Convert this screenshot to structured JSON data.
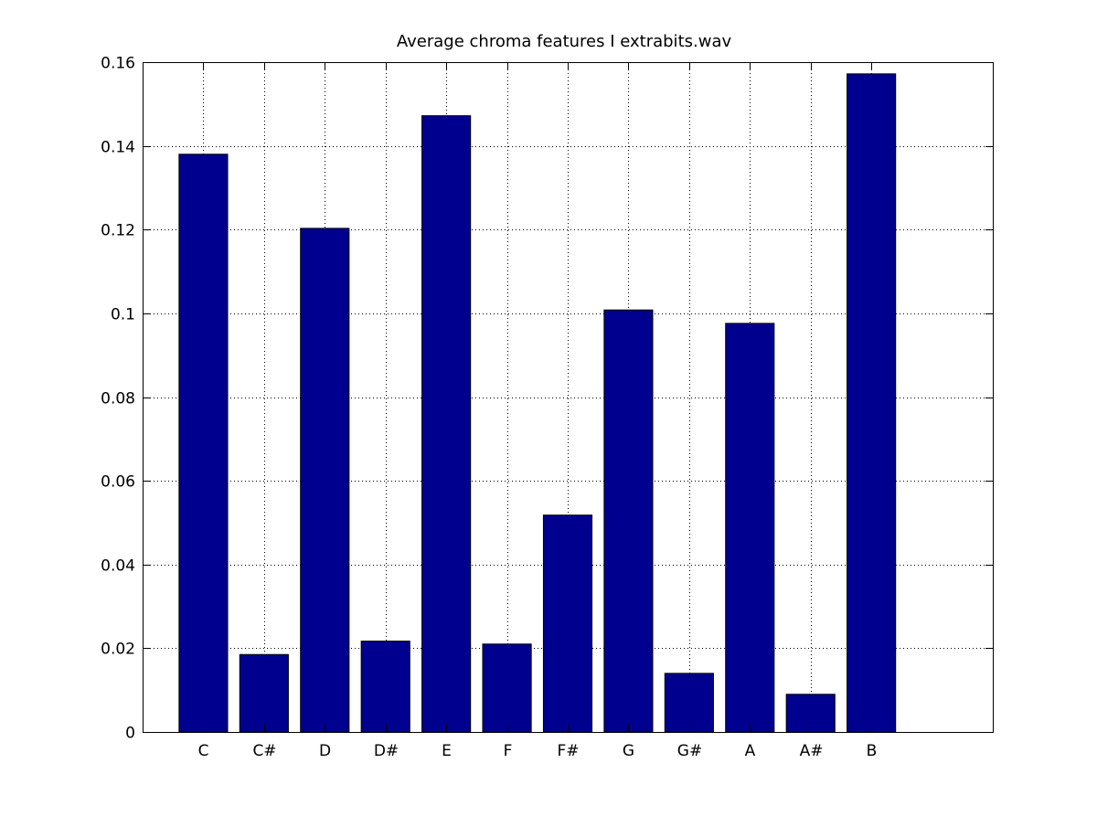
{
  "chart_data": {
    "type": "bar",
    "title": "Average chroma features I extrabits.wav",
    "xlabel": "",
    "ylabel": "",
    "categories": [
      "C",
      "C#",
      "D",
      "D#",
      "E",
      "F",
      "F#",
      "G",
      "G#",
      "A",
      "A#",
      "B"
    ],
    "values": [
      0.138,
      0.0185,
      0.1203,
      0.0217,
      0.1472,
      0.021,
      0.0518,
      0.1008,
      0.014,
      0.0976,
      0.009,
      0.1572
    ],
    "xlim": [
      0,
      14
    ],
    "ylim": [
      0,
      0.16
    ],
    "yticks": [
      0,
      0.02,
      0.04,
      0.06,
      0.08,
      0.1,
      0.12,
      0.14,
      0.16
    ],
    "ytick_labels": [
      "0",
      "0.02",
      "0.04",
      "0.06",
      "0.08",
      "0.1",
      "0.12",
      "0.14",
      "0.16"
    ],
    "grid": true,
    "bar_color": "#00008f",
    "legend": "none"
  }
}
